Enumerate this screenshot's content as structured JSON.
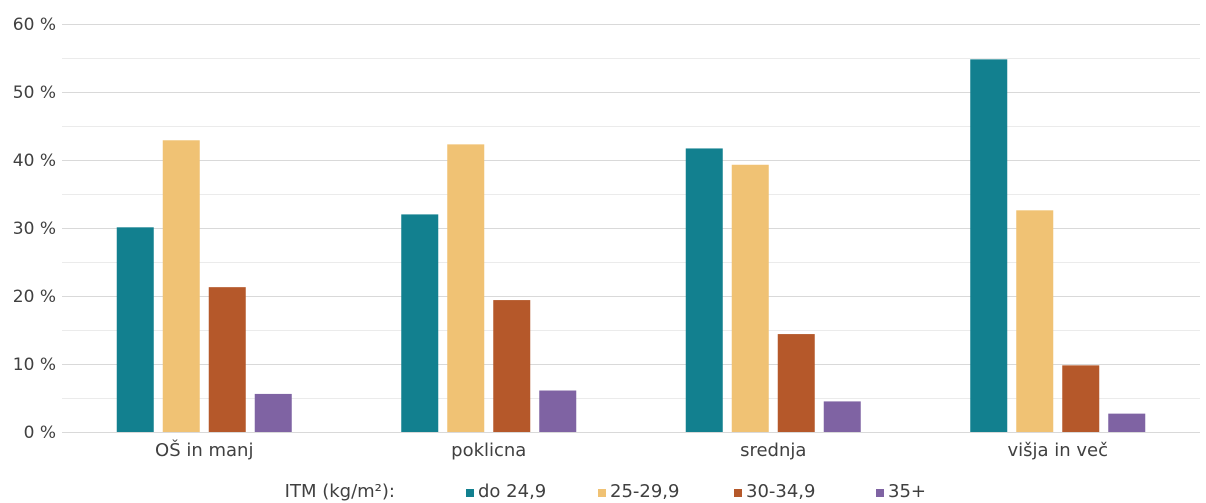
{
  "chart_data": {
    "type": "bar",
    "title": "",
    "xlabel": "",
    "ylabel": "",
    "ylim": [
      0,
      60
    ],
    "y_ticks": [
      "0 %",
      "10 %",
      "20 %",
      "30 %",
      "40 %",
      "50 %",
      "60 %"
    ],
    "y_tick_values": [
      0,
      10,
      20,
      30,
      40,
      50,
      60
    ],
    "grid": true,
    "categories": [
      "OŠ in manj",
      "poklicna",
      "srednja",
      "višja in več"
    ],
    "series": [
      {
        "name": "do 24,9",
        "color": "#12808f",
        "values": [
          30.1,
          32.0,
          41.7,
          54.8
        ]
      },
      {
        "name": "25-29,9",
        "color": "#f0c274",
        "values": [
          42.9,
          42.3,
          39.3,
          32.6
        ]
      },
      {
        "name": "30-34,9",
        "color": "#b5582a",
        "values": [
          21.3,
          19.4,
          14.4,
          9.8
        ]
      },
      {
        "name": "35+",
        "color": "#7f63a3",
        "values": [
          5.6,
          6.1,
          4.5,
          2.7
        ]
      }
    ],
    "legend": {
      "title": "ITM (kg/m²):",
      "position": "bottom"
    }
  }
}
